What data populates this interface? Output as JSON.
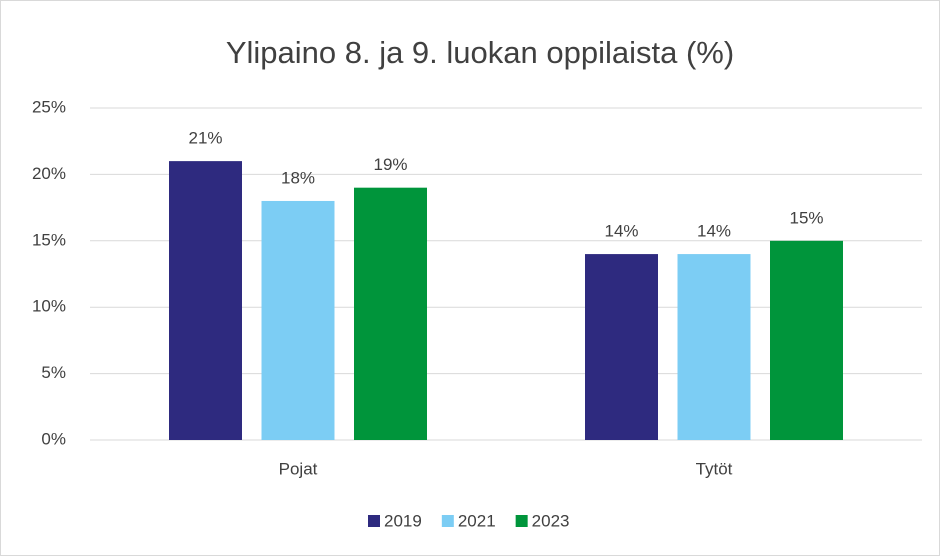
{
  "chart_data": {
    "type": "bar",
    "title": "Ylipaino 8. ja 9. luokan oppilaista (%)",
    "categories": [
      "Pojat",
      "Tytöt"
    ],
    "series": [
      {
        "name": "2019",
        "color": "#2e2a7f",
        "values": [
          21,
          14
        ],
        "value_labels": [
          "21%",
          "14%"
        ]
      },
      {
        "name": "2021",
        "color": "#7ccdf4",
        "values": [
          18,
          14
        ],
        "value_labels": [
          "18%",
          "14%"
        ]
      },
      {
        "name": "2023",
        "color": "#00953b",
        "values": [
          19,
          15
        ],
        "value_labels": [
          "19%",
          "15%"
        ]
      }
    ],
    "ylim": [
      0,
      25
    ],
    "yticks": [
      {
        "value": 0,
        "label": "0%"
      },
      {
        "value": 5,
        "label": "5%"
      },
      {
        "value": 10,
        "label": "10%"
      },
      {
        "value": 15,
        "label": "15%"
      },
      {
        "value": 20,
        "label": "20%"
      },
      {
        "value": 25,
        "label": "25%"
      }
    ],
    "grid": true,
    "legend": "bottom"
  }
}
